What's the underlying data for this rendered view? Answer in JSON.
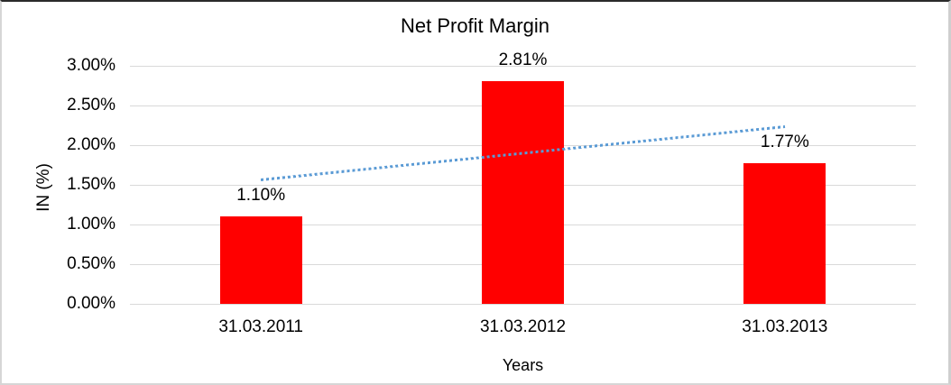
{
  "chart_data": {
    "type": "bar",
    "title": "Net Profit Margin",
    "xlabel": "Years",
    "ylabel": "IN (%)",
    "categories": [
      "31.03.2011",
      "31.03.2012",
      "31.03.2013"
    ],
    "values": [
      1.1,
      2.81,
      1.77
    ],
    "data_labels": [
      "1.10%",
      "2.81%",
      "1.77%"
    ],
    "ylim": [
      0,
      3
    ],
    "ytick_step": 0.5,
    "ytick_labels": [
      "0.00%",
      "0.50%",
      "1.00%",
      "1.50%",
      "2.00%",
      "2.50%",
      "3.00%"
    ],
    "grid": true,
    "legend": "none",
    "bar_color": "#FF0000",
    "gridline_color": "#D9D9D9",
    "trendline": {
      "type": "linear",
      "line_style": "dotted",
      "color": "#5B9BD5",
      "start_value": 1.56,
      "end_value": 2.23,
      "spans": "first-to-last-category-center"
    }
  }
}
